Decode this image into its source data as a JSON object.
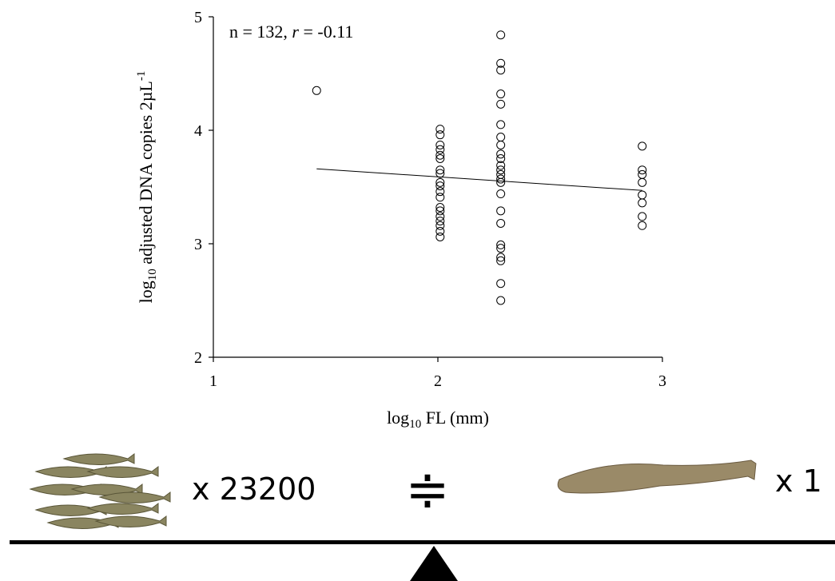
{
  "chart_data": {
    "type": "scatter",
    "annotation": [
      "n = 132, ",
      "r",
      " = -0.11"
    ],
    "xlabel": [
      "log",
      "10",
      " FL (mm)"
    ],
    "ylabel": [
      "log",
      "10",
      " adjusted DNA copies 2µL",
      "-1"
    ],
    "xlim": [
      1,
      3
    ],
    "xticks": [
      1,
      2,
      3
    ],
    "ylim": [
      2,
      5
    ],
    "yticks": [
      2,
      3,
      4,
      5
    ],
    "series": [
      {
        "type": "scatter",
        "color": "#000000",
        "x": [
          1.46,
          2.01,
          2.01,
          2.01,
          2.01,
          2.01,
          2.01,
          2.01,
          2.01,
          2.01,
          2.01,
          2.01,
          2.01,
          2.01,
          2.01,
          2.01,
          2.01,
          2.01,
          2.01,
          2.01,
          2.28,
          2.28,
          2.28,
          2.28,
          2.28,
          2.28,
          2.28,
          2.28,
          2.28,
          2.28,
          2.28,
          2.28,
          2.28,
          2.28,
          2.28,
          2.28,
          2.28,
          2.28,
          2.28,
          2.28,
          2.28,
          2.28,
          2.28,
          2.28,
          2.91,
          2.91,
          2.91,
          2.91,
          2.91,
          2.91,
          2.91,
          2.91
        ],
        "values": [
          4.35,
          4.01,
          3.96,
          3.87,
          3.83,
          3.78,
          3.75,
          3.65,
          3.62,
          3.54,
          3.51,
          3.46,
          3.41,
          3.32,
          3.29,
          3.24,
          3.2,
          3.16,
          3.11,
          3.06,
          4.84,
          4.59,
          4.53,
          4.32,
          4.23,
          4.05,
          3.94,
          3.87,
          3.79,
          3.75,
          3.69,
          3.65,
          3.61,
          3.57,
          3.54,
          3.44,
          3.29,
          3.18,
          2.99,
          2.96,
          2.88,
          2.85,
          2.65,
          2.5,
          3.86,
          3.65,
          3.61,
          3.54,
          3.43,
          3.36,
          3.24,
          3.16
        ]
      },
      {
        "type": "line",
        "color": "#000000",
        "x": [
          1.46,
          2.91
        ],
        "values": [
          3.66,
          3.47
        ]
      }
    ]
  },
  "illustration": {
    "left_label": "x 23200",
    "symbol": "≑",
    "right_label": "x 1"
  }
}
